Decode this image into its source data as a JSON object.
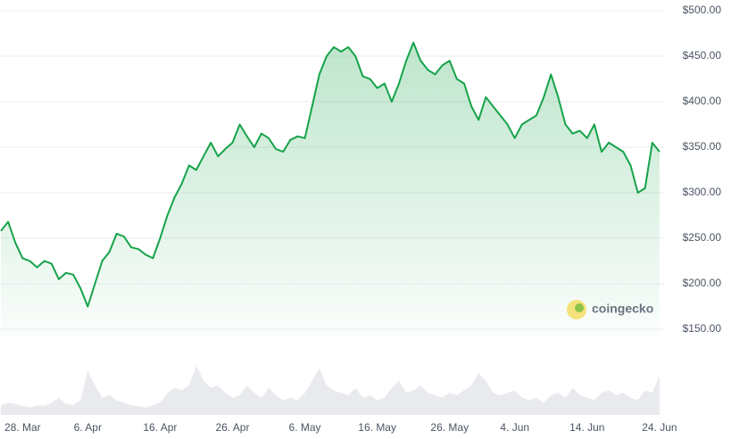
{
  "chart_data": {
    "type": "price-area",
    "x": [
      "03-25",
      "03-26",
      "03-27",
      "03-28",
      "03-29",
      "03-30",
      "03-31",
      "04-01",
      "04-02",
      "04-03",
      "04-04",
      "04-05",
      "04-06",
      "04-07",
      "04-08",
      "04-09",
      "04-10",
      "04-11",
      "04-12",
      "04-13",
      "04-14",
      "04-15",
      "04-16",
      "04-17",
      "04-18",
      "04-19",
      "04-20",
      "04-21",
      "04-22",
      "04-23",
      "04-24",
      "04-25",
      "04-26",
      "04-27",
      "04-28",
      "04-29",
      "04-30",
      "05-01",
      "05-02",
      "05-03",
      "05-04",
      "05-05",
      "05-06",
      "05-07",
      "05-08",
      "05-09",
      "05-10",
      "05-11",
      "05-12",
      "05-13",
      "05-14",
      "05-15",
      "05-16",
      "05-17",
      "05-18",
      "05-19",
      "05-20",
      "05-21",
      "05-22",
      "05-23",
      "05-24",
      "05-25",
      "05-26",
      "05-27",
      "05-28",
      "05-29",
      "05-30",
      "05-31",
      "06-01",
      "06-02",
      "06-03",
      "06-04",
      "06-05",
      "06-06",
      "06-07",
      "06-08",
      "06-09",
      "06-10",
      "06-11",
      "06-12",
      "06-13",
      "06-14",
      "06-15",
      "06-16",
      "06-17",
      "06-18",
      "06-19",
      "06-20",
      "06-21",
      "06-22",
      "06-23",
      "06-24"
    ],
    "values": [
      258,
      268,
      245,
      228,
      225,
      218,
      225,
      222,
      205,
      212,
      210,
      195,
      175,
      200,
      225,
      235,
      255,
      252,
      240,
      238,
      232,
      228,
      250,
      275,
      295,
      310,
      330,
      325,
      340,
      355,
      340,
      348,
      355,
      375,
      362,
      350,
      365,
      360,
      348,
      345,
      358,
      362,
      360,
      395,
      430,
      450,
      460,
      455,
      460,
      450,
      428,
      425,
      415,
      420,
      400,
      420,
      445,
      465,
      445,
      435,
      430,
      440,
      445,
      425,
      420,
      395,
      380,
      405,
      395,
      385,
      375,
      360,
      375,
      380,
      385,
      405,
      430,
      405,
      375,
      365,
      368,
      360,
      375,
      345,
      355,
      350,
      345,
      330,
      300,
      305,
      355,
      345
    ],
    "color": "#16a34a",
    "volume": {
      "color": "#e8eaee",
      "ylim": [
        0,
        100
      ],
      "values": [
        20,
        25,
        22,
        18,
        15,
        20,
        18,
        25,
        35,
        22,
        20,
        30,
        90,
        60,
        35,
        40,
        30,
        25,
        20,
        18,
        15,
        20,
        25,
        45,
        55,
        50,
        60,
        100,
        70,
        55,
        60,
        45,
        35,
        40,
        60,
        45,
        35,
        55,
        40,
        30,
        35,
        30,
        45,
        70,
        95,
        60,
        50,
        45,
        40,
        55,
        35,
        40,
        30,
        35,
        55,
        70,
        45,
        50,
        60,
        45,
        40,
        35,
        45,
        40,
        50,
        60,
        85,
        70,
        45,
        40,
        45,
        50,
        35,
        30,
        35,
        25,
        40,
        45,
        35,
        55,
        40,
        35,
        30,
        45,
        50,
        40,
        45,
        35,
        30,
        50,
        45,
        80
      ]
    },
    "xlim": [
      "03-25",
      "06-25"
    ],
    "xticks": [
      {
        "value": "03-28",
        "label": "28. Mar"
      },
      {
        "value": "04-06",
        "label": "6. Apr"
      },
      {
        "value": "04-16",
        "label": "16. Apr"
      },
      {
        "value": "04-26",
        "label": "26. Apr"
      },
      {
        "value": "05-06",
        "label": "6. May"
      },
      {
        "value": "05-16",
        "label": "16. May"
      },
      {
        "value": "05-26",
        "label": "26. May"
      },
      {
        "value": "06-04",
        "label": "4. Jun"
      },
      {
        "value": "06-14",
        "label": "14. Jun"
      },
      {
        "value": "06-24",
        "label": "24. Jun"
      }
    ],
    "ylim": [
      150,
      500
    ],
    "yticks": [
      {
        "value": 150,
        "label": "$150.00"
      },
      {
        "value": 200,
        "label": "$200.00"
      },
      {
        "value": 250,
        "label": "$250.00"
      },
      {
        "value": 300,
        "label": "$300.00"
      },
      {
        "value": 350,
        "label": "$350.00"
      },
      {
        "value": 400,
        "label": "$400.00"
      },
      {
        "value": 450,
        "label": "$450.00"
      },
      {
        "value": 500,
        "label": "$500.00"
      }
    ],
    "grid": true,
    "watermark": "coingecko"
  }
}
